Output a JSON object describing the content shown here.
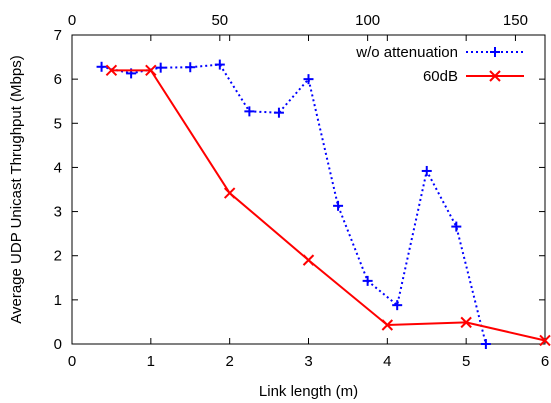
{
  "chart_data": {
    "type": "line",
    "xlabel": "Link length (m)",
    "ylabel": "Average UDP Unicast Thrughput (Mbps)",
    "xlim": [
      0,
      6
    ],
    "ylim": [
      0,
      7
    ],
    "xticks": [
      "0",
      "1",
      "2",
      "3",
      "4",
      "5",
      "6"
    ],
    "yticks": [
      "0",
      "1",
      "2",
      "3",
      "4",
      "5",
      "6",
      "7"
    ],
    "x2lim": [
      0,
      160
    ],
    "x2ticks": [
      "0",
      "50",
      "100",
      "150"
    ],
    "grid": false,
    "legend_position": "top-right",
    "series": [
      {
        "name": "w/o attenuation",
        "color": "#0000ff",
        "line_style": "dotted",
        "marker": "plus",
        "axis": "top",
        "x": [
          10,
          20,
          30,
          40,
          50,
          60,
          70,
          80,
          90,
          100,
          110,
          120,
          130,
          140
        ],
        "y": [
          6.28,
          6.13,
          6.26,
          6.27,
          6.33,
          5.27,
          5.24,
          6.0,
          3.13,
          1.43,
          0.88,
          3.92,
          2.66,
          0.0
        ]
      },
      {
        "name": "60dB",
        "color": "#ff0000",
        "line_style": "solid",
        "marker": "x",
        "axis": "bottom",
        "x": [
          0.5,
          1,
          2,
          3,
          4,
          5,
          6
        ],
        "y": [
          6.2,
          6.2,
          3.42,
          1.9,
          0.43,
          0.49,
          0.08
        ]
      }
    ]
  }
}
